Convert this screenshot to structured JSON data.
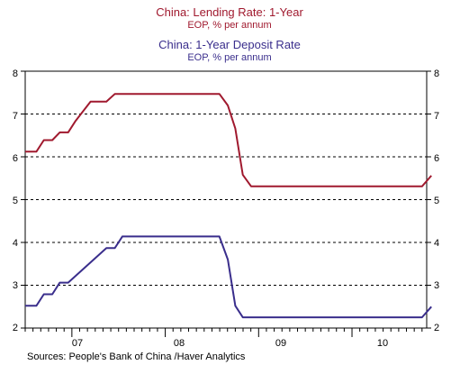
{
  "chart_data": {
    "type": "line",
    "titles": [
      {
        "title": "China: Lending Rate: 1-Year",
        "subtitle": "EOP, % per annum",
        "color": "#a0192e"
      },
      {
        "title": "China: 1-Year Deposit Rate",
        "subtitle": "EOP, % per annum",
        "color": "#3a2e8c"
      }
    ],
    "y_ticks": [
      "8",
      "7",
      "6",
      "5",
      "4",
      "3",
      "2"
    ],
    "ylim": [
      2,
      8
    ],
    "x_ticks": [
      "07",
      "08",
      "09",
      "10"
    ],
    "xlim": [
      2006.5,
      2010.8
    ],
    "grid": "horizontal-dashed",
    "series": [
      {
        "name": "China: Lending Rate: 1-Year",
        "color": "#a0192e",
        "points": [
          [
            2006.5,
            6.12
          ],
          [
            2006.62,
            6.12
          ],
          [
            2006.7,
            6.39
          ],
          [
            2006.79,
            6.39
          ],
          [
            2006.87,
            6.57
          ],
          [
            2006.96,
            6.57
          ],
          [
            2007.04,
            6.84
          ],
          [
            2007.2,
            7.29
          ],
          [
            2007.37,
            7.29
          ],
          [
            2007.46,
            7.47
          ],
          [
            2008.58,
            7.47
          ],
          [
            2008.67,
            7.2
          ],
          [
            2008.75,
            6.66
          ],
          [
            2008.83,
            5.58
          ],
          [
            2008.92,
            5.31
          ],
          [
            2010.75,
            5.31
          ],
          [
            2010.85,
            5.56
          ]
        ]
      },
      {
        "name": "China: 1-Year Deposit Rate",
        "color": "#3a2e8c",
        "points": [
          [
            2006.5,
            2.52
          ],
          [
            2006.62,
            2.52
          ],
          [
            2006.7,
            2.79
          ],
          [
            2006.79,
            2.79
          ],
          [
            2006.87,
            3.06
          ],
          [
            2006.96,
            3.06
          ],
          [
            2007.37,
            3.87
          ],
          [
            2007.46,
            3.87
          ],
          [
            2007.54,
            4.14
          ],
          [
            2008.58,
            4.14
          ],
          [
            2008.67,
            3.6
          ],
          [
            2008.75,
            2.52
          ],
          [
            2008.83,
            2.25
          ],
          [
            2010.75,
            2.25
          ],
          [
            2010.85,
            2.5
          ]
        ]
      }
    ]
  },
  "source": "Sources:  People's Bank of China /Haver Analytics"
}
